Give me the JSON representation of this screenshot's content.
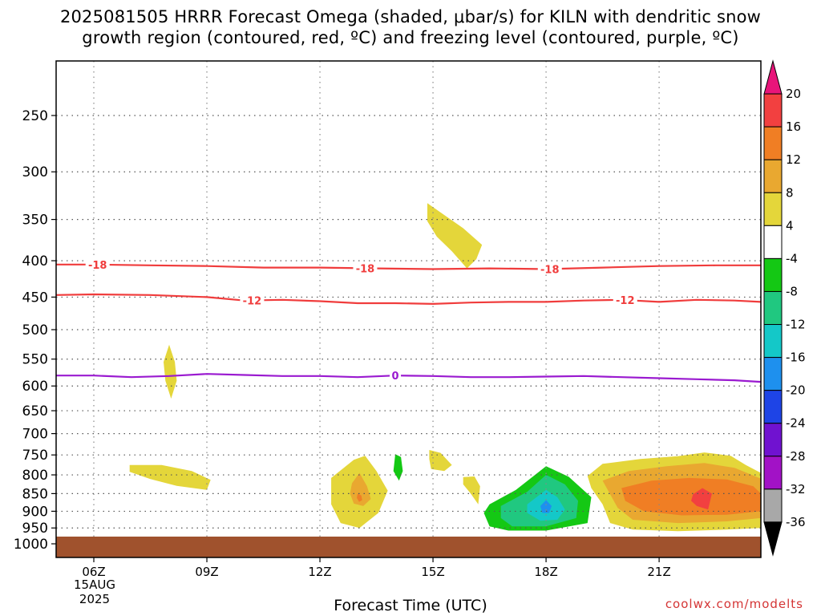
{
  "title": {
    "line1": "2025081505 HRRR Forecast Omega (shaded, μbar/s) for KILN with dendritic snow",
    "line2": "growth region (contoured, red, ºC) and freezing level (contoured, purple, ºC)"
  },
  "xlabel": "Forecast Time (UTC)",
  "credit": "coolwx.com/modelts",
  "date_label": [
    "15AUG",
    "2025"
  ],
  "chart_data": {
    "type": "heatmap",
    "x_unit": "hour UTC",
    "xlim": [
      5,
      23.7
    ],
    "y_unit": "hPa",
    "yticks": [
      250,
      300,
      350,
      400,
      450,
      500,
      550,
      600,
      650,
      700,
      750,
      800,
      850,
      900,
      950,
      1000
    ],
    "xticks": [
      {
        "hour": 6,
        "label": "06Z"
      },
      {
        "hour": 9,
        "label": "09Z"
      },
      {
        "hour": 12,
        "label": "12Z"
      },
      {
        "hour": 15,
        "label": "15Z"
      },
      {
        "hour": 18,
        "label": "18Z"
      },
      {
        "hour": 21,
        "label": "21Z"
      }
    ],
    "grid": true,
    "colorbar": {
      "labels": [
        "20",
        "16",
        "12",
        "8",
        "4",
        "-4",
        "-8",
        "-12",
        "-16",
        "-20",
        "-24",
        "-28",
        "-32",
        "-36"
      ],
      "colors": [
        "#e8157a",
        "#f24040",
        "#f07e24",
        "#e9a830",
        "#e4d63a",
        "#ffffff",
        "#14c814",
        "#20c880",
        "#14c8c8",
        "#1e90ee",
        "#1e44e6",
        "#7012d0",
        "#a212c6",
        "#a8a8a8",
        "#000000"
      ]
    },
    "contours": [
      {
        "name": "-18",
        "color": "#f03c3c",
        "points": [
          [
            5.0,
            405
          ],
          [
            6.0,
            405
          ],
          [
            7.5,
            406
          ],
          [
            9.0,
            407
          ],
          [
            10.5,
            409
          ],
          [
            12.0,
            409
          ],
          [
            13.5,
            410
          ],
          [
            15.0,
            411
          ],
          [
            16.5,
            410
          ],
          [
            18.0,
            411
          ],
          [
            19.5,
            409
          ],
          [
            21.0,
            407
          ],
          [
            22.5,
            406
          ],
          [
            23.7,
            406
          ]
        ],
        "label_at": [
          6.1,
          13.2,
          18.1
        ]
      },
      {
        "name": "-12",
        "color": "#f03c3c",
        "points": [
          [
            5.0,
            447
          ],
          [
            6.0,
            446
          ],
          [
            7.5,
            447
          ],
          [
            9.0,
            450
          ],
          [
            10.0,
            455
          ],
          [
            11.0,
            454
          ],
          [
            12.0,
            456
          ],
          [
            13.0,
            459
          ],
          [
            14.0,
            459
          ],
          [
            15.0,
            460
          ],
          [
            16.0,
            458
          ],
          [
            17.0,
            457
          ],
          [
            18.0,
            457
          ],
          [
            19.0,
            455
          ],
          [
            20.0,
            454
          ],
          [
            21.0,
            457
          ],
          [
            22.0,
            454
          ],
          [
            23.0,
            455
          ],
          [
            23.7,
            457
          ]
        ],
        "label_at": [
          10.2,
          20.1
        ]
      },
      {
        "name": "0",
        "color": "#9a1ad0",
        "points": [
          [
            5.0,
            580
          ],
          [
            6.0,
            580
          ],
          [
            7.0,
            583
          ],
          [
            8.0,
            581
          ],
          [
            9.0,
            577
          ],
          [
            10.0,
            579
          ],
          [
            11.0,
            581
          ],
          [
            12.0,
            581
          ],
          [
            13.0,
            583
          ],
          [
            14.0,
            580
          ],
          [
            15.0,
            581
          ],
          [
            16.0,
            583
          ],
          [
            17.0,
            583
          ],
          [
            18.0,
            582
          ],
          [
            19.0,
            581
          ],
          [
            20.0,
            583
          ],
          [
            21.0,
            585
          ],
          [
            22.0,
            587
          ],
          [
            23.0,
            589
          ],
          [
            23.7,
            592
          ]
        ],
        "label_at": [
          14.0
        ]
      }
    ],
    "omega_regions": [
      {
        "level": "4",
        "color": "#e4d63a",
        "points": [
          [
            14.85,
            332
          ],
          [
            15.3,
            345
          ],
          [
            15.8,
            360
          ],
          [
            16.3,
            380
          ],
          [
            16.15,
            398
          ],
          [
            15.9,
            410
          ],
          [
            15.5,
            388
          ],
          [
            15.1,
            370
          ],
          [
            14.85,
            352
          ]
        ]
      },
      {
        "level": "4",
        "color": "#e4d63a",
        "points": [
          [
            8.0,
            525
          ],
          [
            8.15,
            555
          ],
          [
            8.2,
            590
          ],
          [
            8.05,
            625
          ],
          [
            7.9,
            590
          ],
          [
            7.85,
            555
          ]
        ]
      },
      {
        "level": "4",
        "color": "#e4d63a",
        "points": [
          [
            6.95,
            775
          ],
          [
            7.8,
            775
          ],
          [
            8.6,
            790
          ],
          [
            9.1,
            813
          ],
          [
            9.0,
            840
          ],
          [
            8.2,
            829
          ],
          [
            7.5,
            811
          ],
          [
            6.95,
            792
          ]
        ]
      },
      {
        "level": "4",
        "color": "#e4d63a",
        "points": [
          [
            12.3,
            808
          ],
          [
            12.9,
            762
          ],
          [
            13.2,
            752
          ],
          [
            13.5,
            790
          ],
          [
            13.8,
            842
          ],
          [
            13.55,
            905
          ],
          [
            13.05,
            950
          ],
          [
            12.55,
            935
          ],
          [
            12.3,
            880
          ]
        ]
      },
      {
        "level": "8",
        "color": "#e9a830",
        "points": [
          [
            12.85,
            822
          ],
          [
            13.05,
            795
          ],
          [
            13.25,
            830
          ],
          [
            13.35,
            865
          ],
          [
            13.15,
            885
          ],
          [
            12.9,
            878
          ],
          [
            12.8,
            850
          ]
        ]
      },
      {
        "level": "12",
        "color": "#f07e24",
        "points": [
          [
            13.0,
            850
          ],
          [
            13.1,
            855
          ],
          [
            13.12,
            868
          ],
          [
            13.04,
            873
          ],
          [
            12.98,
            862
          ]
        ]
      },
      {
        "level": "4",
        "color": "#e4d63a",
        "points": [
          [
            14.9,
            738
          ],
          [
            15.2,
            745
          ],
          [
            15.5,
            775
          ],
          [
            15.3,
            790
          ],
          [
            14.95,
            785
          ],
          [
            14.9,
            760
          ]
        ]
      },
      {
        "level": "4",
        "color": "#e4d63a",
        "points": [
          [
            15.8,
            806
          ],
          [
            16.1,
            804
          ],
          [
            16.25,
            830
          ],
          [
            16.2,
            880
          ],
          [
            16.0,
            850
          ],
          [
            15.8,
            825
          ]
        ]
      },
      {
        "level": "4",
        "color": "#e4d63a",
        "points": [
          [
            19.1,
            803
          ],
          [
            19.5,
            772
          ],
          [
            20.5,
            760
          ],
          [
            21.5,
            753
          ],
          [
            22.2,
            744
          ],
          [
            22.9,
            752
          ],
          [
            23.3,
            775
          ],
          [
            23.7,
            795
          ],
          [
            23.7,
            950
          ],
          [
            22.8,
            955
          ],
          [
            21.5,
            960
          ],
          [
            20.3,
            955
          ],
          [
            19.7,
            935
          ],
          [
            19.5,
            880
          ],
          [
            19.2,
            835
          ]
        ]
      },
      {
        "level": "8",
        "color": "#e9a830",
        "points": [
          [
            19.5,
            815
          ],
          [
            20.2,
            790
          ],
          [
            21.2,
            778
          ],
          [
            22.2,
            770
          ],
          [
            23.0,
            782
          ],
          [
            23.7,
            810
          ],
          [
            23.7,
            920
          ],
          [
            22.8,
            930
          ],
          [
            21.5,
            935
          ],
          [
            20.3,
            925
          ],
          [
            19.9,
            890
          ]
        ]
      },
      {
        "level": "12",
        "color": "#f07e24",
        "points": [
          [
            20.0,
            835
          ],
          [
            20.8,
            815
          ],
          [
            21.8,
            808
          ],
          [
            22.8,
            812
          ],
          [
            23.5,
            830
          ],
          [
            23.7,
            850
          ],
          [
            23.7,
            900
          ],
          [
            22.8,
            910
          ],
          [
            21.6,
            912
          ],
          [
            20.6,
            900
          ],
          [
            20.1,
            870
          ]
        ]
      },
      {
        "level": "16",
        "color": "#f24040",
        "points": [
          [
            21.9,
            852
          ],
          [
            22.15,
            835
          ],
          [
            22.4,
            850
          ],
          [
            22.3,
            895
          ],
          [
            22.0,
            885
          ],
          [
            21.85,
            870
          ]
        ]
      },
      {
        "level": "-4",
        "color": "#14c814",
        "points": [
          [
            14.0,
            748
          ],
          [
            14.15,
            755
          ],
          [
            14.2,
            790
          ],
          [
            14.1,
            815
          ],
          [
            13.95,
            790
          ]
        ]
      },
      {
        "level": "-4",
        "color": "#14c814",
        "points": [
          [
            16.5,
            880
          ],
          [
            17.2,
            840
          ],
          [
            18.0,
            778
          ],
          [
            18.6,
            805
          ],
          [
            19.2,
            860
          ],
          [
            19.1,
            935
          ],
          [
            18.0,
            958
          ],
          [
            17.0,
            958
          ],
          [
            16.5,
            945
          ],
          [
            16.35,
            905
          ]
        ]
      },
      {
        "level": "-8",
        "color": "#20c880",
        "points": [
          [
            16.8,
            885
          ],
          [
            17.5,
            845
          ],
          [
            18.0,
            800
          ],
          [
            18.5,
            825
          ],
          [
            18.85,
            870
          ],
          [
            18.8,
            920
          ],
          [
            18.0,
            945
          ],
          [
            17.1,
            945
          ],
          [
            16.8,
            920
          ]
        ]
      },
      {
        "level": "-12",
        "color": "#14c8c8",
        "points": [
          [
            17.5,
            880
          ],
          [
            18.0,
            840
          ],
          [
            18.3,
            860
          ],
          [
            18.5,
            895
          ],
          [
            18.3,
            925
          ],
          [
            17.85,
            928
          ],
          [
            17.5,
            905
          ]
        ]
      },
      {
        "level": "-16",
        "color": "#1e90ee",
        "points": [
          [
            17.85,
            885
          ],
          [
            18.0,
            868
          ],
          [
            18.15,
            885
          ],
          [
            18.08,
            905
          ],
          [
            17.9,
            905
          ]
        ]
      }
    ]
  }
}
